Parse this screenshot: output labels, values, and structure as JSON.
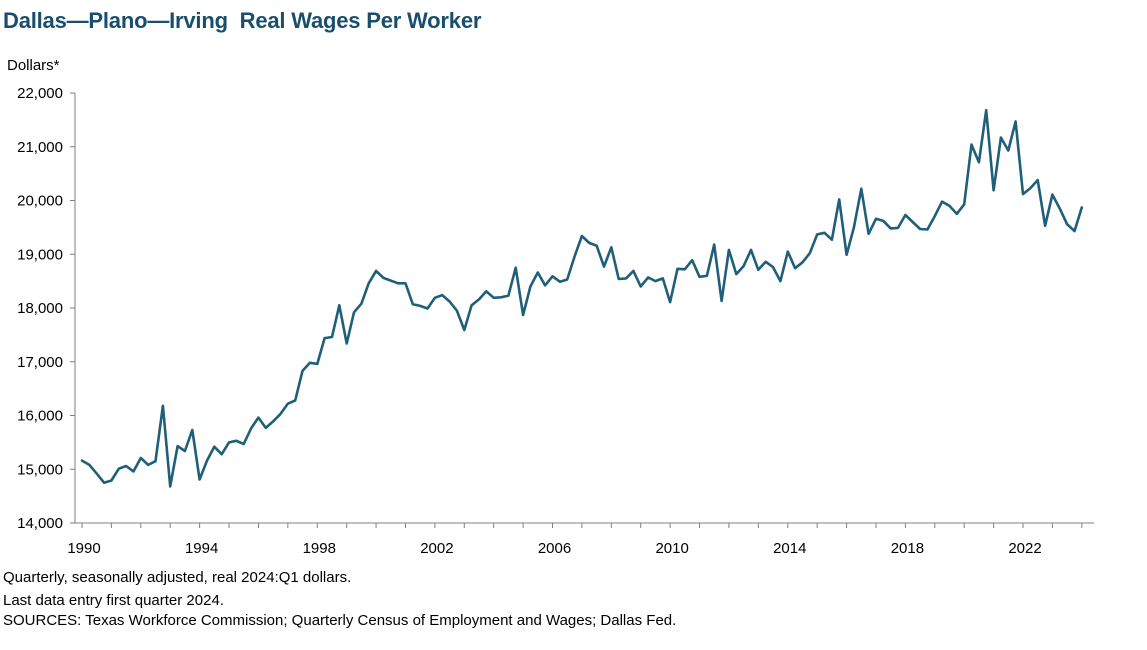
{
  "chart_data": {
    "type": "line",
    "title": "Dallas—Plano—Irving  Real Wages Per Worker",
    "ylabel": "Dollars*",
    "xlabel": "",
    "ylim": [
      14000,
      22000
    ],
    "y_ticks": [
      "14,000",
      "15,000",
      "16,000",
      "17,000",
      "18,000",
      "19,000",
      "20,000",
      "21,000",
      "22,000"
    ],
    "x_ticks": [
      "1990",
      "1994",
      "1998",
      "2002",
      "2006",
      "2010",
      "2014",
      "2018",
      "2022"
    ],
    "grid": false,
    "frequency": "quarterly",
    "series_color": "#1f5f7a",
    "x_start": "1990:Q1",
    "series": [
      {
        "values": [
          15160,
          15080,
          14920,
          14750,
          14790,
          15010,
          15060,
          14960,
          15210,
          15080,
          15150,
          16180,
          14680,
          15430,
          15340,
          15730,
          14810,
          15160,
          15420,
          15280,
          15500,
          15530,
          15470,
          15760,
          15960,
          15770,
          15890,
          16030,
          16220,
          16280,
          16830,
          16980,
          16960,
          17440,
          17460,
          18050,
          17340,
          17920,
          18080,
          18460,
          18690,
          18560,
          18510,
          18460,
          18460,
          18070,
          18040,
          17990,
          18190,
          18240,
          18120,
          17950,
          17590,
          18050,
          18160,
          18310,
          18190,
          18200,
          18230,
          18750,
          17870,
          18400,
          18660,
          18420,
          18590,
          18490,
          18530,
          18960,
          19340,
          19210,
          19160,
          18770,
          19130,
          18540,
          18550,
          18690,
          18400,
          18570,
          18500,
          18550,
          18110,
          18730,
          18720,
          18890,
          18580,
          18600,
          19180,
          18130,
          19080,
          18630,
          18780,
          19080,
          18710,
          18860,
          18760,
          18500,
          19050,
          18740,
          18850,
          19020,
          19370,
          19400,
          19270,
          20020,
          18990,
          19500,
          20220,
          19380,
          19660,
          19620,
          19480,
          19490,
          19730,
          19600,
          19470,
          19460,
          19710,
          19980,
          19900,
          19750,
          19930,
          21040,
          20710,
          21680,
          20190,
          21170,
          20930,
          21470,
          20120,
          20230,
          20380,
          19530,
          20110,
          19850,
          19560,
          19430,
          19870
        ]
      }
    ]
  },
  "notes": [
    "Quarterly, seasonally adjusted, real 2024:Q1 dollars.",
    "Last data entry first quarter 2024.",
    "SOURCES: Texas Workforce Commission; Quarterly Census of Employment and Wages; Dallas Fed."
  ]
}
